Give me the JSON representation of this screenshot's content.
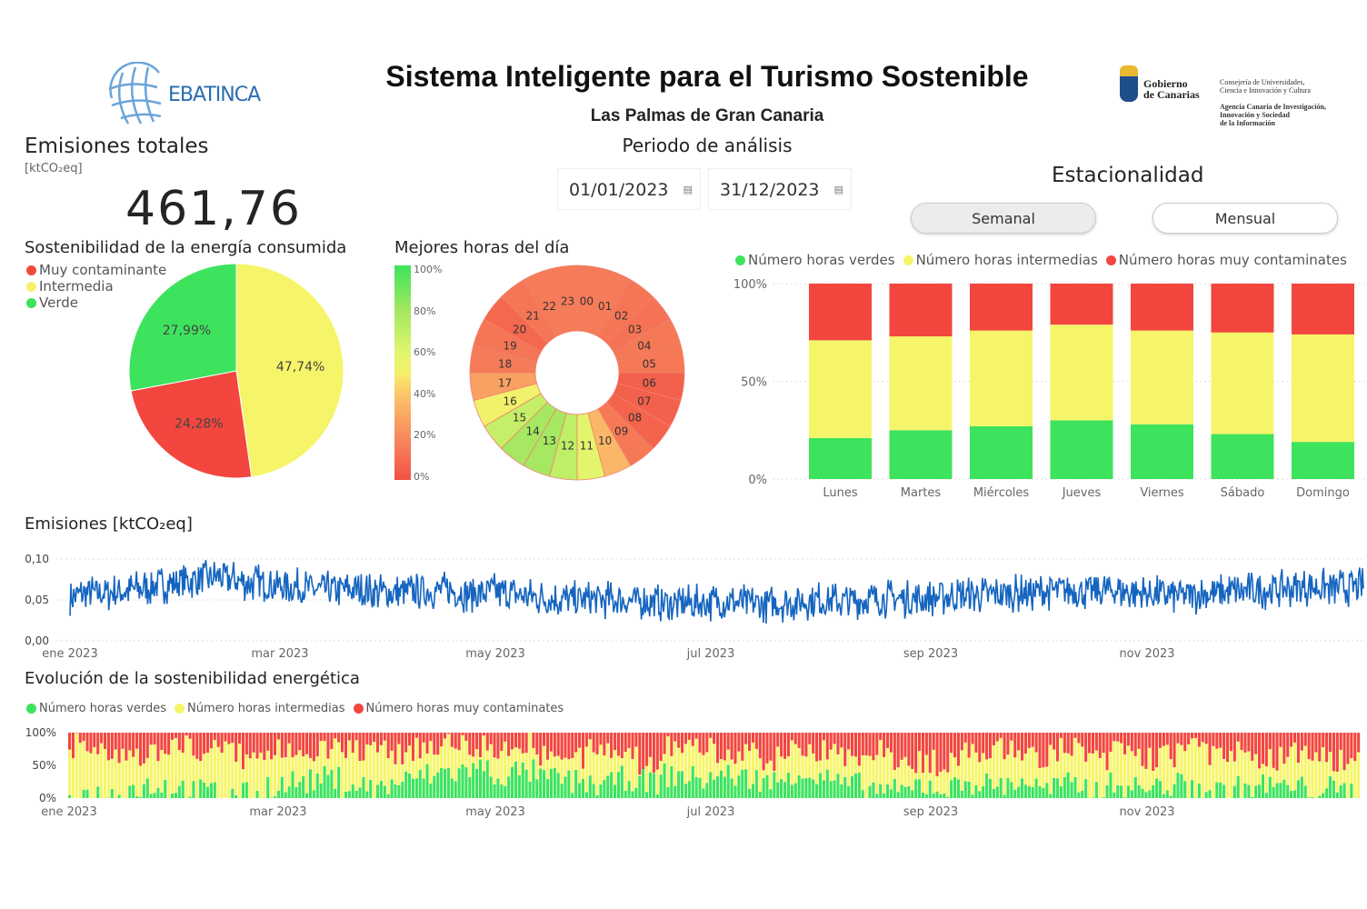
{
  "header": {
    "title": "Sistema Inteligente para el Turismo Sostenible",
    "subtitle": "Las Palmas de Gran Canaria",
    "period_label": "Periodo de análisis"
  },
  "logos": {
    "left": "EBATINCA",
    "gov1": "Gobierno",
    "gov2": "de Canarias",
    "consejeria1": "Consejería de Universidades,",
    "consejeria2": "Ciencia e Innovación y Cultura",
    "agencia1": "Agencia Canaria de Investigación,",
    "agencia2": "Innovación y Sociedad",
    "agencia3": "de la Información"
  },
  "dates": {
    "start": "01/01/2023",
    "end": "31/12/2023"
  },
  "kpi": {
    "title": "Emisiones totales",
    "unit": "[ktCO₂eq]",
    "value": "461,76"
  },
  "colors": {
    "green": "#3de35d",
    "yellow": "#f6f56a",
    "red": "#f2463e",
    "line": "#1565c0"
  },
  "estacionalidad": {
    "title": "Estacionalidad",
    "buttons": [
      "Semanal",
      "Mensual"
    ],
    "selected": "Semanal"
  },
  "legend": {
    "green": "Número horas verdes",
    "yellow": "Número horas intermedias",
    "red": "Número horas muy contaminates"
  },
  "chart_data": [
    {
      "id": "pie",
      "type": "pie",
      "title": "Sostenibilidad de la energía consumida",
      "legend": [
        "Muy contaminante",
        "Intermedia",
        "Verde"
      ],
      "slices": [
        {
          "name": "Intermedia",
          "value": 47.74,
          "label": "47,74%"
        },
        {
          "name": "Muy contaminante",
          "value": 24.28,
          "label": "24,28%"
        },
        {
          "name": "Verde",
          "value": 27.99,
          "label": "27,99%"
        }
      ]
    },
    {
      "id": "hours",
      "type": "heatmap",
      "title": "Mejores horas del día",
      "scale_ticks": [
        "100%",
        "80%",
        "60%",
        "40%",
        "20%",
        "0%"
      ],
      "hours": [
        "00",
        "01",
        "02",
        "03",
        "04",
        "05",
        "06",
        "07",
        "08",
        "09",
        "10",
        "11",
        "12",
        "13",
        "14",
        "15",
        "16",
        "17",
        "18",
        "19",
        "20",
        "21",
        "22",
        "23"
      ],
      "green_pct": [
        15,
        15,
        13,
        12,
        14,
        14,
        5,
        5,
        6,
        14,
        35,
        58,
        70,
        78,
        78,
        68,
        52,
        28,
        15,
        13,
        8,
        13,
        15,
        15
      ]
    },
    {
      "id": "weekly",
      "type": "bar",
      "stacked": true,
      "categories": [
        "Lunes",
        "Martes",
        "Miércoles",
        "Jueves",
        "Viernes",
        "Sábado",
        "Domingo"
      ],
      "yticks": [
        "100%",
        "50%",
        "0%"
      ],
      "series": [
        {
          "name": "Número horas verdes",
          "values": [
            21,
            25,
            27,
            30,
            28,
            23,
            19
          ]
        },
        {
          "name": "Número horas intermedias",
          "values": [
            50,
            48,
            49,
            49,
            48,
            52,
            55
          ]
        },
        {
          "name": "Número horas muy contaminates",
          "values": [
            29,
            27,
            24,
            21,
            24,
            25,
            26
          ]
        }
      ]
    },
    {
      "id": "emissions",
      "type": "line",
      "title": "Emisiones [ktCO₂eq]",
      "ylim": [
        0,
        0.1
      ],
      "yticks": [
        "0,10",
        "0,05",
        "0,00"
      ],
      "xticks": [
        "ene 2023",
        "mar 2023",
        "may 2023",
        "jul 2023",
        "sep 2023",
        "nov 2023"
      ],
      "weekly_mean": [
        0.055,
        0.058,
        0.06,
        0.065,
        0.07,
        0.075,
        0.078,
        0.072,
        0.07,
        0.066,
        0.062,
        0.063,
        0.06,
        0.058,
        0.06,
        0.062,
        0.058,
        0.06,
        0.056,
        0.052,
        0.05,
        0.05,
        0.05,
        0.048,
        0.046,
        0.045,
        0.048,
        0.046,
        0.045,
        0.047,
        0.05,
        0.048,
        0.05,
        0.052,
        0.05,
        0.054,
        0.055,
        0.056,
        0.058,
        0.06,
        0.062,
        0.06,
        0.062,
        0.058,
        0.056,
        0.055,
        0.058,
        0.06,
        0.062,
        0.064,
        0.066,
        0.065,
        0.066
      ]
    },
    {
      "id": "evolution",
      "type": "bar",
      "stacked": true,
      "title": "Evolución de la sostenibilidad energética",
      "yticks": [
        "100%",
        "50%",
        "0%"
      ],
      "xticks": [
        "ene 2023",
        "mar 2023",
        "may 2023",
        "jul 2023",
        "sep 2023",
        "nov 2023"
      ],
      "weekly_green_pct": [
        5,
        5,
        15,
        20,
        15,
        10,
        5,
        5,
        20,
        25,
        30,
        20,
        15,
        25,
        35,
        40,
        45,
        35,
        40,
        30,
        25,
        20,
        30,
        25,
        35,
        30,
        35,
        30,
        25,
        40,
        30,
        20,
        15,
        10,
        20,
        15,
        25,
        20,
        25,
        15,
        20,
        15,
        20,
        15,
        20,
        15,
        10,
        15,
        20,
        15,
        15,
        10,
        10
      ],
      "weekly_red_pct": [
        20,
        35,
        40,
        30,
        20,
        25,
        30,
        40,
        30,
        25,
        20,
        30,
        25,
        30,
        20,
        15,
        20,
        25,
        15,
        35,
        40,
        30,
        25,
        45,
        20,
        25,
        30,
        35,
        40,
        25,
        30,
        35,
        30,
        40,
        45,
        50,
        30,
        25,
        30,
        35,
        25,
        45,
        30,
        40,
        35,
        25,
        35,
        30,
        40,
        30,
        35,
        40,
        45
      ]
    }
  ]
}
